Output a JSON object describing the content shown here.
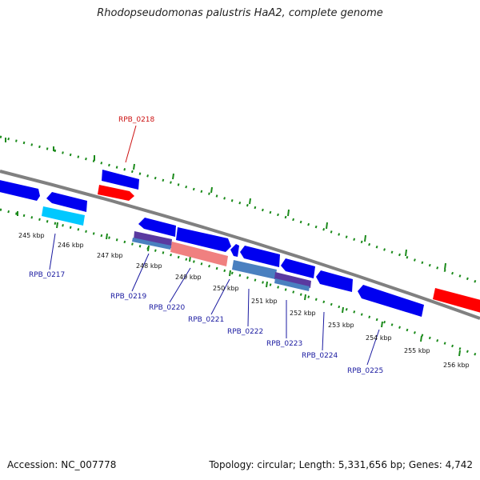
{
  "title": "Rhodopseudomonas palustris HaA2, complete genome",
  "footer": {
    "accession": "Accession: NC_007778",
    "summary": "Topology: circular; Length: 5,331,656 bp; Genes: 4,742"
  },
  "colors": {
    "backbone": "#808080",
    "forward_gene": "#0000f0",
    "highlight_gene": "#ff0000",
    "cyan_gene": "#00c8ff",
    "tick_green": "#1a8a1a",
    "label_blue": "#1a1aa0",
    "label_red": "#cc1111"
  },
  "scale_labels": [
    "245 kbp",
    "246 kbp",
    "247 kbp",
    "248 kbp",
    "249 kbp",
    "250 kbp",
    "251 kbp",
    "252 kbp",
    "253 kbp",
    "254 kbp",
    "255 kbp",
    "256 kbp"
  ],
  "gene_labels": [
    {
      "text": "RPB_0217",
      "color": "blue"
    },
    {
      "text": "RPB_0218",
      "color": "red"
    },
    {
      "text": "RPB_0219",
      "color": "blue"
    },
    {
      "text": "RPB_0220",
      "color": "blue"
    },
    {
      "text": "RPB_0221",
      "color": "blue"
    },
    {
      "text": "RPB_0222",
      "color": "blue"
    },
    {
      "text": "RPB_0223",
      "color": "blue"
    },
    {
      "text": "RPB_0224",
      "color": "blue"
    },
    {
      "text": "RPB_0225",
      "color": "blue"
    }
  ]
}
